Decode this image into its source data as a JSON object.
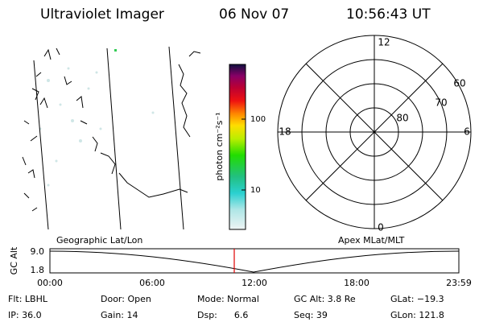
{
  "header": {
    "title": "Ultraviolet Imager",
    "date": "06 Nov 07",
    "time": "10:56:43 UT"
  },
  "colorbar": {
    "label": "photon cm⁻²s⁻¹",
    "ticks": [
      "100",
      "10"
    ]
  },
  "polar": {
    "labels": [
      "12",
      "0",
      "18",
      "6",
      "60",
      "70",
      "80"
    ]
  },
  "altitude": {
    "left_title": "Geographic Lat/Lon",
    "right_title": "Apex MLat/MLT",
    "y_label": "GC Alt",
    "y_ticks": [
      "9.0",
      "1.8"
    ],
    "x_ticks": [
      "00:00",
      "06:00",
      "12:00",
      "18:00",
      "23:59"
    ]
  },
  "info": {
    "rows": [
      [
        "Flt: LBHL",
        "Door: Open",
        "Mode: Normal",
        "GC Alt: 3.8 Re",
        "GLat: −19.3"
      ],
      [
        "IP: 36.0",
        "Gain: 14",
        "Dsp:      6.6",
        "Seq: 39",
        "GLon: 121.8"
      ]
    ]
  }
}
